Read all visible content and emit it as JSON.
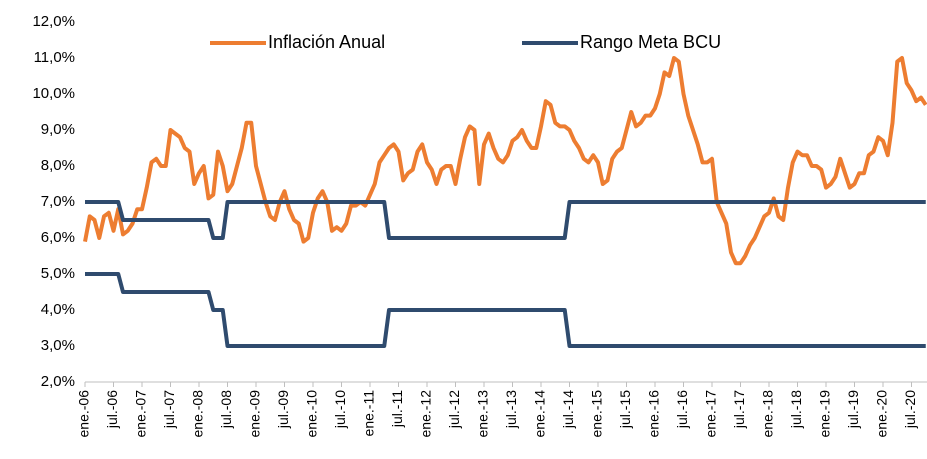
{
  "chart_data": {
    "type": "line",
    "categories": [
      "ene.-06",
      null,
      null,
      null,
      null,
      null,
      "jul.-06",
      null,
      null,
      null,
      null,
      null,
      "ene.-07",
      null,
      null,
      null,
      null,
      null,
      "jul.-07",
      null,
      null,
      null,
      null,
      null,
      "ene.-08",
      null,
      null,
      null,
      null,
      null,
      "jul.-08",
      null,
      null,
      null,
      null,
      null,
      "ene.-09",
      null,
      null,
      null,
      null,
      null,
      "jul.-09",
      null,
      null,
      null,
      null,
      null,
      "ene.-10",
      null,
      null,
      null,
      null,
      null,
      "jul.-10",
      null,
      null,
      null,
      null,
      null,
      "ene.-11",
      null,
      null,
      null,
      null,
      null,
      "jul.-11",
      null,
      null,
      null,
      null,
      null,
      "ene.-12",
      null,
      null,
      null,
      null,
      null,
      "jul.-12",
      null,
      null,
      null,
      null,
      null,
      "ene.-13",
      null,
      null,
      null,
      null,
      null,
      "jul.-13",
      null,
      null,
      null,
      null,
      null,
      "ene.-14",
      null,
      null,
      null,
      null,
      null,
      "jul.-14",
      null,
      null,
      null,
      null,
      null,
      "ene.-15",
      null,
      null,
      null,
      null,
      null,
      "jul.-15",
      null,
      null,
      null,
      null,
      null,
      "ene.-16",
      null,
      null,
      null,
      null,
      null,
      "jul.-16",
      null,
      null,
      null,
      null,
      null,
      "ene.-17",
      null,
      null,
      null,
      null,
      null,
      "jul.-17",
      null,
      null,
      null,
      null,
      null,
      "ene.-18",
      null,
      null,
      null,
      null,
      null,
      "jul.-18",
      null,
      null,
      null,
      null,
      null,
      "ene.-19",
      null,
      null,
      null,
      null,
      null,
      "jul.-19",
      null,
      null,
      null,
      null,
      null,
      "ene.-20",
      null,
      null,
      null,
      null,
      null,
      "jul.-20",
      null,
      null,
      null
    ],
    "series": [
      {
        "name": "Inflación Anual",
        "color": "#ED7D31",
        "values": [
          5.9,
          6.6,
          6.5,
          6.0,
          6.6,
          6.7,
          6.2,
          6.8,
          6.1,
          6.2,
          6.4,
          6.8,
          6.8,
          7.4,
          8.1,
          8.2,
          8.0,
          8.0,
          9.0,
          8.9,
          8.8,
          8.5,
          8.4,
          7.5,
          7.8,
          8.0,
          7.1,
          7.2,
          8.4,
          8.0,
          7.3,
          7.5,
          8.0,
          8.5,
          9.2,
          9.2,
          8.0,
          7.5,
          7.0,
          6.6,
          6.5,
          7.0,
          7.3,
          6.8,
          6.5,
          6.4,
          5.9,
          6.0,
          6.7,
          7.1,
          7.3,
          7.0,
          6.2,
          6.3,
          6.2,
          6.4,
          6.9,
          6.9,
          7.0,
          6.9,
          7.2,
          7.5,
          8.1,
          8.3,
          8.5,
          8.6,
          8.4,
          7.6,
          7.8,
          7.9,
          8.4,
          8.6,
          8.1,
          7.9,
          7.5,
          7.9,
          8.0,
          8.0,
          7.5,
          8.2,
          8.8,
          9.1,
          9.0,
          7.5,
          8.6,
          8.9,
          8.5,
          8.2,
          8.1,
          8.3,
          8.7,
          8.8,
          9.0,
          8.7,
          8.5,
          8.5,
          9.1,
          9.8,
          9.7,
          9.2,
          9.1,
          9.1,
          9.0,
          8.7,
          8.5,
          8.2,
          8.1,
          8.3,
          8.1,
          7.5,
          7.6,
          8.2,
          8.4,
          8.5,
          9.0,
          9.5,
          9.1,
          9.2,
          9.4,
          9.4,
          9.6,
          10.0,
          10.6,
          10.5,
          11.0,
          10.9,
          10.0,
          9.4,
          9.0,
          8.6,
          8.1,
          8.1,
          8.2,
          7.0,
          6.7,
          6.4,
          5.6,
          5.3,
          5.3,
          5.5,
          5.8,
          6.0,
          6.3,
          6.6,
          6.7,
          7.1,
          6.6,
          6.5,
          7.4,
          8.1,
          8.4,
          8.3,
          8.3,
          8.0,
          8.0,
          7.9,
          7.4,
          7.5,
          7.7,
          8.2,
          7.8,
          7.4,
          7.5,
          7.8,
          7.8,
          8.3,
          8.4,
          8.8,
          8.7,
          8.3,
          9.2,
          10.9,
          11.0,
          10.3,
          10.1,
          9.8,
          9.9,
          9.7
        ]
      },
      {
        "name": "Rango Meta BCU",
        "color": "#2F4B6E",
        "values": [
          7,
          7,
          7,
          7,
          7,
          7,
          7,
          7,
          6.5,
          6.5,
          6.5,
          6.5,
          6.5,
          6.5,
          6.5,
          6.5,
          6.5,
          6.5,
          6.5,
          6.5,
          6.5,
          6.5,
          6.5,
          6.5,
          6.5,
          6.5,
          6.5,
          6,
          6,
          6,
          7,
          7,
          7,
          7,
          7,
          7,
          7,
          7,
          7,
          7,
          7,
          7,
          7,
          7,
          7,
          7,
          7,
          7,
          7,
          7,
          7,
          7,
          7,
          7,
          7,
          7,
          7,
          7,
          7,
          7,
          7,
          7,
          7,
          7,
          6,
          6,
          6,
          6,
          6,
          6,
          6,
          6,
          6,
          6,
          6,
          6,
          6,
          6,
          6,
          6,
          6,
          6,
          6,
          6,
          6,
          6,
          6,
          6,
          6,
          6,
          6,
          6,
          6,
          6,
          6,
          6,
          6,
          6,
          6,
          6,
          6,
          6,
          7,
          7,
          7,
          7,
          7,
          7,
          7,
          7,
          7,
          7,
          7,
          7,
          7,
          7,
          7,
          7,
          7,
          7,
          7,
          7,
          7,
          7,
          7,
          7,
          7,
          7,
          7,
          7,
          7,
          7,
          7,
          7,
          7,
          7,
          7,
          7,
          7,
          7,
          7,
          7,
          7,
          7,
          7,
          7,
          7,
          7,
          7,
          7,
          7,
          7,
          7,
          7,
          7,
          7,
          7,
          7,
          7,
          7,
          7,
          7,
          7,
          7,
          7,
          7,
          7,
          7,
          7,
          7,
          7,
          7,
          7,
          7,
          7,
          7,
          7,
          7
        ]
      },
      {
        "name": "",
        "color": "#2F4B6E",
        "values": [
          5,
          5,
          5,
          5,
          5,
          5,
          5,
          5,
          4.5,
          4.5,
          4.5,
          4.5,
          4.5,
          4.5,
          4.5,
          4.5,
          4.5,
          4.5,
          4.5,
          4.5,
          4.5,
          4.5,
          4.5,
          4.5,
          4.5,
          4.5,
          4.5,
          4,
          4,
          4,
          3,
          3,
          3,
          3,
          3,
          3,
          3,
          3,
          3,
          3,
          3,
          3,
          3,
          3,
          3,
          3,
          3,
          3,
          3,
          3,
          3,
          3,
          3,
          3,
          3,
          3,
          3,
          3,
          3,
          3,
          3,
          3,
          3,
          3,
          4,
          4,
          4,
          4,
          4,
          4,
          4,
          4,
          4,
          4,
          4,
          4,
          4,
          4,
          4,
          4,
          4,
          4,
          4,
          4,
          4,
          4,
          4,
          4,
          4,
          4,
          4,
          4,
          4,
          4,
          4,
          4,
          4,
          4,
          4,
          4,
          4,
          4,
          3,
          3,
          3,
          3,
          3,
          3,
          3,
          3,
          3,
          3,
          3,
          3,
          3,
          3,
          3,
          3,
          3,
          3,
          3,
          3,
          3,
          3,
          3,
          3,
          3,
          3,
          3,
          3,
          3,
          3,
          3,
          3,
          3,
          3,
          3,
          3,
          3,
          3,
          3,
          3,
          3,
          3,
          3,
          3,
          3,
          3,
          3,
          3,
          3,
          3,
          3,
          3,
          3,
          3,
          3,
          3,
          3,
          3,
          3,
          3,
          3,
          3,
          3,
          3,
          3,
          3,
          3,
          3,
          3,
          3,
          3,
          3,
          3,
          3,
          3,
          3
        ]
      }
    ],
    "ylim": [
      2,
      12
    ],
    "yticks": [
      {
        "value": 2,
        "label": "2,0%"
      },
      {
        "value": 3,
        "label": "3,0%"
      },
      {
        "value": 4,
        "label": "4,0%"
      },
      {
        "value": 5,
        "label": "5,0%"
      },
      {
        "value": 6,
        "label": "6,0%"
      },
      {
        "value": 7,
        "label": "7,0%"
      },
      {
        "value": 8,
        "label": "8,0%"
      },
      {
        "value": 9,
        "label": "9,0%"
      },
      {
        "value": 10,
        "label": "10,0%"
      },
      {
        "value": 11,
        "label": "11,0%"
      },
      {
        "value": 12,
        "label": "12,0%"
      }
    ]
  }
}
